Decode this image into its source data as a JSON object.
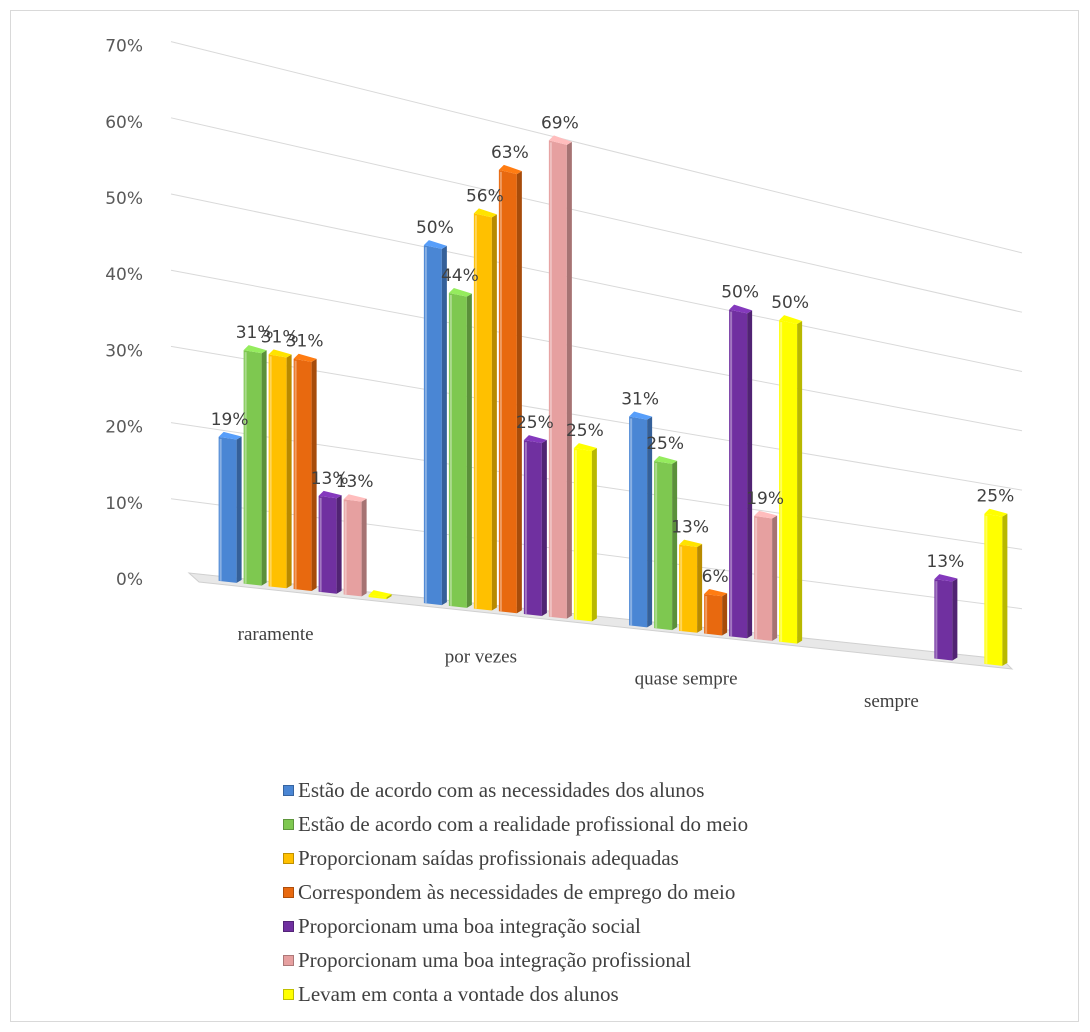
{
  "chart_data": {
    "type": "bar",
    "title": "",
    "xlabel": "",
    "ylabel": "",
    "ylim": [
      0,
      70
    ],
    "y_ticks": [
      "0%",
      "10%",
      "20%",
      "30%",
      "40%",
      "50%",
      "60%",
      "70%"
    ],
    "grid": true,
    "legend_position": "bottom",
    "categories": [
      "raramente",
      "por vezes",
      "quase sempre",
      "sempre"
    ],
    "series": [
      {
        "name": "Estão de acordo com as necessidades dos alunos",
        "color": "#4a86d4",
        "values": [
          19,
          50,
          31,
          null
        ],
        "labels": [
          "19%",
          "50%",
          "31%",
          ""
        ]
      },
      {
        "name": "Estão de acordo com a realidade profissional do meio",
        "color": "#7ec850",
        "values": [
          31,
          44,
          25,
          null
        ],
        "labels": [
          "31%",
          "44%",
          "25%",
          ""
        ]
      },
      {
        "name": "Proporcionam saídas profissionais adequadas",
        "color": "#ffc000",
        "values": [
          31,
          56,
          13,
          null
        ],
        "labels": [
          "31%",
          "56%",
          "13%",
          ""
        ]
      },
      {
        "name": "Correspondem às necessidades de emprego do meio",
        "color": "#e8690f",
        "values": [
          31,
          63,
          6,
          null
        ],
        "labels": [
          "31%",
          "63%",
          "6%",
          ""
        ]
      },
      {
        "name": "Proporcionam uma boa integração social",
        "color": "#7030a0",
        "values": [
          13,
          25,
          50,
          13
        ],
        "labels": [
          "13%",
          "25%",
          "50%",
          "13%"
        ]
      },
      {
        "name": "Proporcionam uma boa integração profissional",
        "color": "#e6a0a0",
        "values": [
          13,
          69,
          19,
          null
        ],
        "labels": [
          "13%",
          "69%",
          "19%",
          ""
        ]
      },
      {
        "name": "Levam em conta a vontade dos alunos",
        "color": "#ffff00",
        "values": [
          0,
          25,
          50,
          25
        ],
        "labels": [
          "",
          "25%",
          "50%",
          "25%"
        ]
      }
    ]
  }
}
